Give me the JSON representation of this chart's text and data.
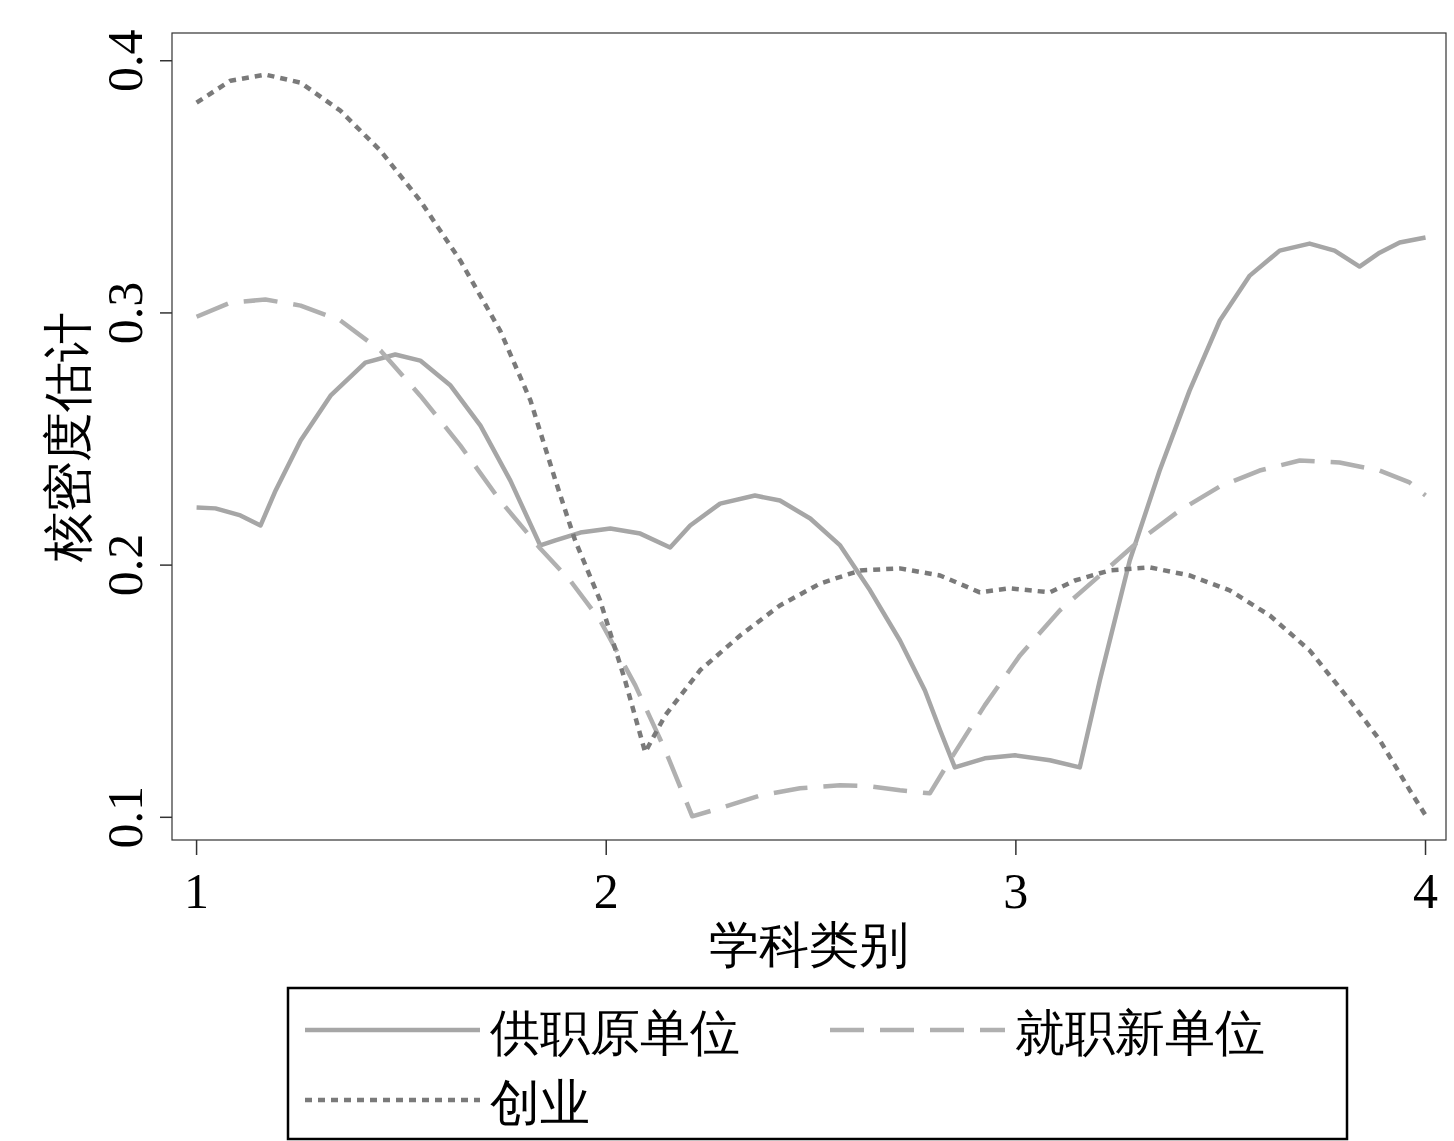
{
  "chart_data": {
    "type": "line",
    "xlabel": "学科类别",
    "ylabel": "核密度估计",
    "xlim": [
      0.94,
      4.05
    ],
    "ylim": [
      0.091,
      0.411
    ],
    "xticks": [
      1,
      2,
      3,
      4
    ],
    "yticks": [
      0.1,
      0.2,
      0.3,
      0.4
    ],
    "grid": false,
    "legend": "bottom",
    "series": [
      {
        "name": "供职原单位",
        "color": "#a6a6a6",
        "line_style": "solid",
        "x": [
          1.0,
          1.046,
          1.107,
          1.156,
          1.193,
          1.254,
          1.327,
          1.412,
          1.485,
          1.546,
          1.62,
          1.693,
          1.766,
          1.839,
          1.876,
          1.937,
          2.01,
          2.083,
          2.156,
          2.205,
          2.278,
          2.363,
          2.424,
          2.498,
          2.571,
          2.644,
          2.717,
          2.778,
          2.815,
          2.851,
          2.924,
          2.998,
          3.083,
          3.156,
          3.205,
          3.278,
          3.351,
          3.424,
          3.498,
          3.571,
          3.644,
          3.717,
          3.778,
          3.839,
          3.888,
          3.937,
          4.0
        ],
        "values": [
          0.2228,
          0.2225,
          0.2197,
          0.2157,
          0.2296,
          0.2494,
          0.2672,
          0.2803,
          0.2835,
          0.2811,
          0.2712,
          0.2553,
          0.2335,
          0.2078,
          0.2098,
          0.2129,
          0.2145,
          0.2125,
          0.207,
          0.2157,
          0.2244,
          0.2276,
          0.2256,
          0.2185,
          0.2078,
          0.19,
          0.1701,
          0.1503,
          0.1345,
          0.1198,
          0.1234,
          0.1246,
          0.1226,
          0.1198,
          0.1543,
          0.2018,
          0.2375,
          0.2692,
          0.297,
          0.3148,
          0.3247,
          0.3275,
          0.3247,
          0.3184,
          0.3239,
          0.3279,
          0.3299
        ]
      },
      {
        "name": "就职新单位",
        "color": "#b0b0b0",
        "line_style": "dashed",
        "x": [
          1.0,
          1.083,
          1.168,
          1.254,
          1.351,
          1.449,
          1.546,
          1.644,
          1.741,
          1.839,
          1.912,
          1.985,
          2.071,
          2.144,
          2.21,
          2.278,
          2.376,
          2.473,
          2.571,
          2.644,
          2.717,
          2.79,
          2.839,
          2.924,
          3.01,
          3.107,
          3.205,
          3.302,
          3.4,
          3.498,
          3.595,
          3.693,
          3.79,
          3.888,
          3.961,
          4.0
        ],
        "values": [
          0.2985,
          0.3041,
          0.3053,
          0.3029,
          0.297,
          0.2851,
          0.2672,
          0.2474,
          0.2256,
          0.2066,
          0.1939,
          0.1781,
          0.1523,
          0.1266,
          0.1004,
          0.1036,
          0.1087,
          0.1115,
          0.1127,
          0.1123,
          0.1107,
          0.1095,
          0.1226,
          0.1444,
          0.1642,
          0.182,
          0.1959,
          0.2098,
          0.2217,
          0.2312,
          0.2375,
          0.2415,
          0.2407,
          0.2375,
          0.2328,
          0.2276
        ]
      },
      {
        "name": "创业",
        "color": "#7a7a7a",
        "line_style": "dotted",
        "x": [
          1.0,
          1.083,
          1.168,
          1.254,
          1.351,
          1.449,
          1.546,
          1.644,
          1.741,
          1.815,
          1.876,
          1.924,
          1.985,
          2.046,
          2.095,
          2.144,
          2.229,
          2.327,
          2.424,
          2.522,
          2.62,
          2.717,
          2.815,
          2.912,
          2.985,
          3.083,
          3.144,
          3.229,
          3.327,
          3.424,
          3.522,
          3.62,
          3.717,
          3.815,
          3.888,
          3.961,
          4.0
        ],
        "values": [
          0.3834,
          0.3921,
          0.3945,
          0.3913,
          0.3802,
          0.3643,
          0.3445,
          0.3207,
          0.293,
          0.2653,
          0.2336,
          0.2098,
          0.186,
          0.1543,
          0.1258,
          0.1404,
          0.1583,
          0.1721,
          0.184,
          0.1927,
          0.1979,
          0.1987,
          0.1959,
          0.1892,
          0.1908,
          0.1892,
          0.1939,
          0.1979,
          0.1991,
          0.1959,
          0.19,
          0.18,
          0.1662,
          0.1464,
          0.1307,
          0.1109,
          0.1008
        ]
      }
    ]
  }
}
